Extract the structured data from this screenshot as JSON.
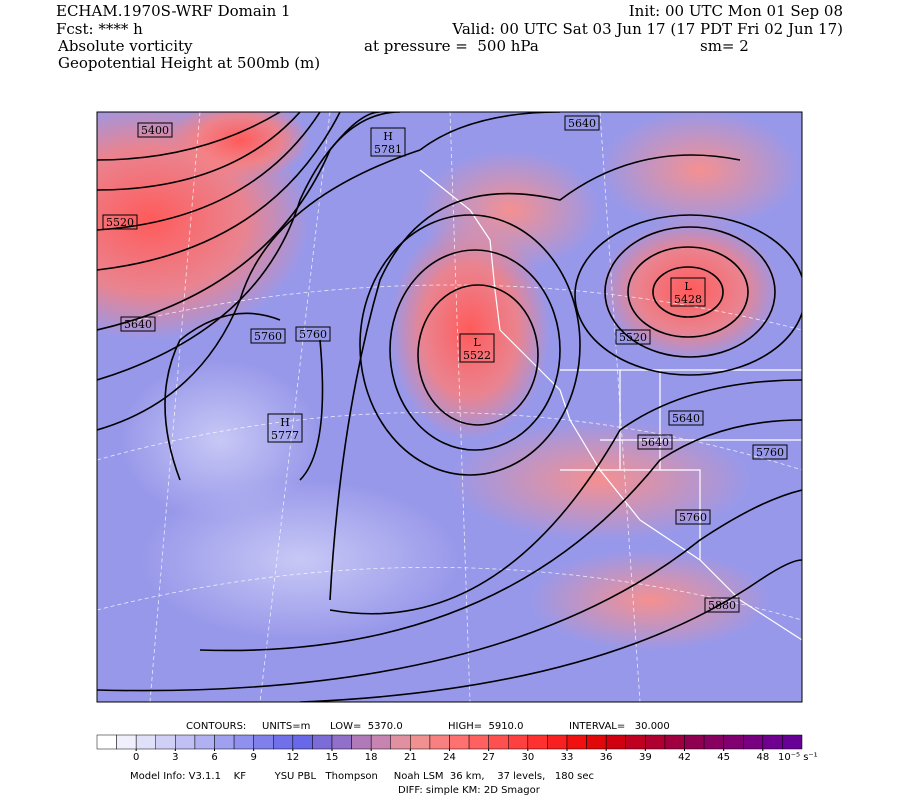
{
  "header": {
    "left": [
      "ECHAM.1970S-WRF Domain 1",
      "Fcst: **** h",
      "Absolute vorticity",
      "Geopotential Height at 500mb (m)"
    ],
    "init": "Init: 00 UTC Mon 01 Sep 08",
    "valid": "Valid: 00 UTC Sat 03 Jun 17 (17 PDT Fri 02 Jun 17)",
    "pressure": "at pressure =  500 hPa",
    "smoothing": "sm= 2"
  },
  "map": {
    "labels": [
      "5400",
      "5520",
      "5640",
      "5760",
      "5760",
      "5640",
      "5520",
      "5640",
      "5640",
      "5760",
      "5760",
      "5880"
    ],
    "centers": [
      {
        "symbol": "H",
        "value": "5781"
      },
      {
        "symbol": "H",
        "value": "5777"
      },
      {
        "symbol": "L",
        "value": "5522"
      },
      {
        "symbol": "L",
        "value": "5428"
      }
    ]
  },
  "contours": {
    "label": "CONTOURS:",
    "units": "UNITS=m",
    "low": "LOW=  5370.0",
    "high": "HIGH=  5910.0",
    "interval": "INTERVAL=   30.000"
  },
  "colorbar": {
    "min": -3,
    "max": 51,
    "ticks": [
      0,
      3,
      6,
      9,
      12,
      15,
      18,
      21,
      24,
      27,
      30,
      33,
      36,
      39,
      42,
      45,
      48
    ],
    "unit": "10⁻⁵ s⁻¹",
    "colors": [
      "#ffffff",
      "#f0f0fc",
      "#e0e0f8",
      "#d0d0f6",
      "#c0c0f4",
      "#b0b0f2",
      "#a0a0f0",
      "#9090ee",
      "#8080ec",
      "#7070ea",
      "#6868e8",
      "#7c6cd8",
      "#9070c8",
      "#b07ab8",
      "#c884b0",
      "#e090a0",
      "#f09090",
      "#f88080",
      "#ff7070",
      "#ff6060",
      "#ff5050",
      "#ff4040",
      "#ff3030",
      "#f82020",
      "#f01010",
      "#e00808",
      "#d00010",
      "#c00020",
      "#b00030",
      "#a00040",
      "#900050",
      "#880060",
      "#800070",
      "#780080",
      "#700090",
      "#680098"
    ]
  },
  "footer": {
    "model": "Model Info: V3.1.1    KF         YSU PBL   Thompson     Noah LSM  36 km,    37 levels,   180 sec",
    "diff": "DIFF: simple KM: 2D Smagor"
  }
}
